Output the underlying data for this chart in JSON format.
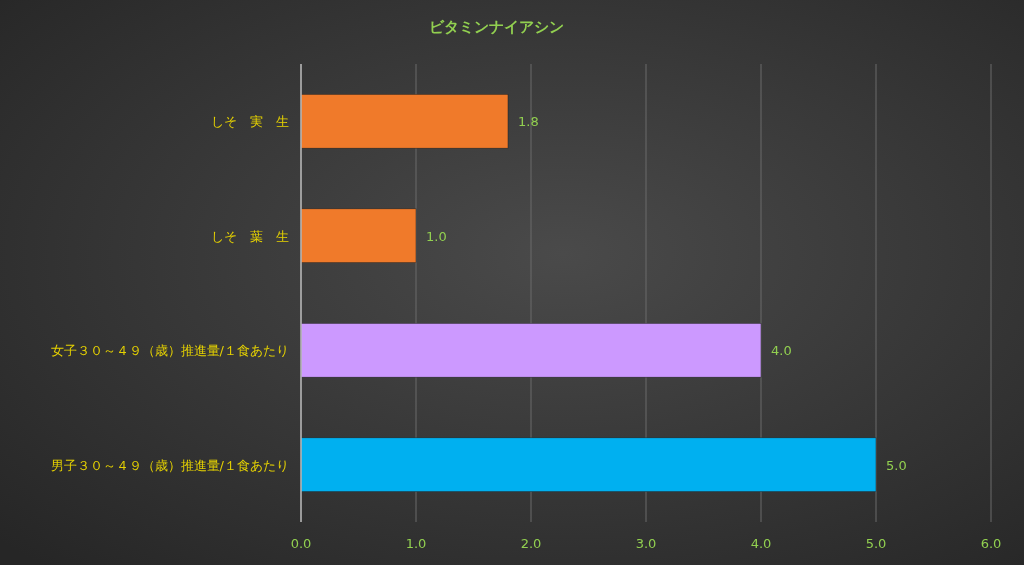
{
  "chart_data": {
    "type": "bar",
    "orientation": "horizontal",
    "title": "ビタミンナイアシン",
    "categories": [
      "しそ　実　生",
      "しそ　葉　生",
      "女子３０～４９（歳）推進量/１食あたり",
      "男子３０～４９（歳）推進量/１食あたり"
    ],
    "values": [
      1.8,
      1.0,
      4.0,
      5.0
    ],
    "colors": [
      "#f07a2a",
      "#f07a2a",
      "#cc99ff",
      "#00b0f0"
    ],
    "value_labels": [
      "1.8",
      "1.0",
      "4.0",
      "5.0"
    ],
    "xlim": [
      0,
      6
    ],
    "xticks": [
      {
        "value": 0,
        "label": "0.0"
      },
      {
        "value": 1,
        "label": "1.0"
      },
      {
        "value": 2,
        "label": "2.0"
      },
      {
        "value": 3,
        "label": "3.0"
      },
      {
        "value": 4,
        "label": "4.0"
      },
      {
        "value": 5,
        "label": "5.0"
      },
      {
        "value": 6,
        "label": "6.0"
      }
    ],
    "grid": "x"
  }
}
